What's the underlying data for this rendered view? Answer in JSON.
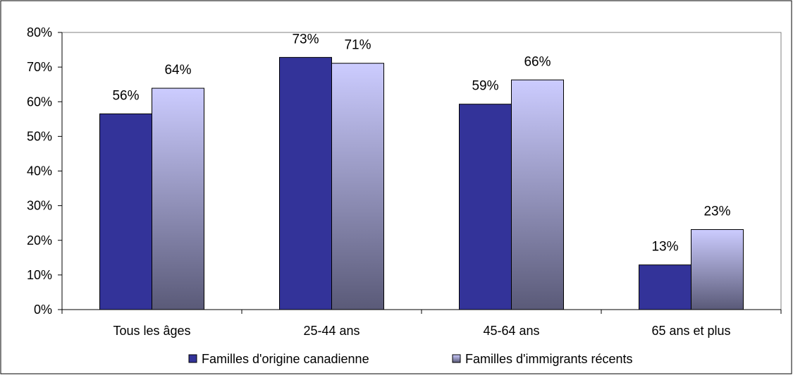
{
  "chart_data": {
    "type": "bar",
    "categories": [
      "Tous les âges",
      "25-44 ans",
      "45-64 ans",
      "65 ans et plus"
    ],
    "series": [
      {
        "name": "Familles d'origine canadienne",
        "values": [
          56.5,
          72.8,
          59.3,
          12.9
        ],
        "labels": [
          "56%",
          "73%",
          "59%",
          "13%"
        ],
        "color": "#333399"
      },
      {
        "name": "Familles d'immigrants récents",
        "values": [
          63.9,
          71.1,
          66.3,
          23.1
        ],
        "labels": [
          "64%",
          "71%",
          "66%",
          "23%"
        ],
        "color": "#ccccff",
        "gradient_to": "#5a5a78"
      }
    ],
    "ylim": [
      0,
      80
    ],
    "yticks": [
      0,
      10,
      20,
      30,
      40,
      50,
      60,
      70,
      80
    ],
    "ytick_labels": [
      "0%",
      "10%",
      "20%",
      "30%",
      "40%",
      "50%",
      "60%",
      "70%",
      "80%"
    ],
    "title": "",
    "xlabel": "",
    "ylabel": "",
    "grid": false,
    "legend": "bottom"
  }
}
